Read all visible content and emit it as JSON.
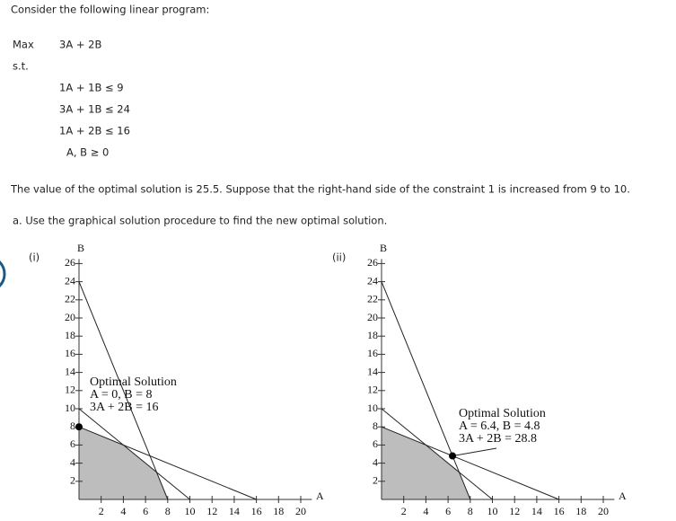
{
  "intro": "Consider the following linear program:",
  "objective": {
    "label": "Max",
    "expression": "3A + 2B"
  },
  "st": "s.t.",
  "constraints": [
    "1A + 1B ≤ 9",
    "3A + 1B ≤ 24",
    "1A + 2B ≤ 16",
    "A, B ≥ 0"
  ],
  "statement": "The value of the optimal solution is 25.5. Suppose that the right-hand side of the constraint 1 is increased from 9 to 10.",
  "question": "a. Use the graphical solution procedure to find the new optimal solution.",
  "graphs": [
    {
      "option": "(i)",
      "x_label": "A",
      "y_label": "B",
      "xlim": [
        0,
        21
      ],
      "ylim": [
        0,
        26.5
      ],
      "xticks": [
        2,
        4,
        6,
        8,
        10,
        12,
        14,
        16,
        18,
        20
      ],
      "yticks": [
        2,
        4,
        6,
        8,
        10,
        12,
        14,
        16,
        18,
        20,
        22,
        24,
        26
      ],
      "lines": [
        [
          [
            0,
            24
          ],
          [
            8,
            0
          ]
        ],
        [
          [
            0,
            8
          ],
          [
            16,
            0
          ]
        ],
        [
          [
            0,
            10
          ],
          [
            10,
            0
          ]
        ]
      ],
      "feasible": [
        [
          0,
          0
        ],
        [
          0,
          8
        ],
        [
          4,
          6
        ],
        [
          7,
          3
        ],
        [
          8,
          0
        ]
      ],
      "optimal": [
        0,
        8
      ],
      "annotation": [
        "Optimal Solution",
        "A = 0, B = 8",
        "3A + 2B = 16"
      ]
    },
    {
      "option": "(ii)",
      "x_label": "A",
      "y_label": "B",
      "xlim": [
        0,
        21
      ],
      "ylim": [
        0,
        26.5
      ],
      "xticks": [
        2,
        4,
        6,
        8,
        10,
        12,
        14,
        16,
        18,
        20
      ],
      "yticks": [
        2,
        4,
        6,
        8,
        10,
        12,
        14,
        16,
        18,
        20,
        22,
        24,
        26
      ],
      "lines": [
        [
          [
            0,
            24
          ],
          [
            8,
            0
          ]
        ],
        [
          [
            0,
            8
          ],
          [
            16,
            0
          ]
        ],
        [
          [
            0,
            10
          ],
          [
            10,
            0
          ]
        ]
      ],
      "feasible": [
        [
          0,
          0
        ],
        [
          0,
          8
        ],
        [
          4,
          6
        ],
        [
          7,
          3
        ],
        [
          8,
          0
        ]
      ],
      "optimal": [
        6.4,
        4.8
      ],
      "annotation": [
        "Optimal Solution",
        "A = 6.4, B = 4.8",
        "3A + 2B = 28.8"
      ]
    }
  ]
}
